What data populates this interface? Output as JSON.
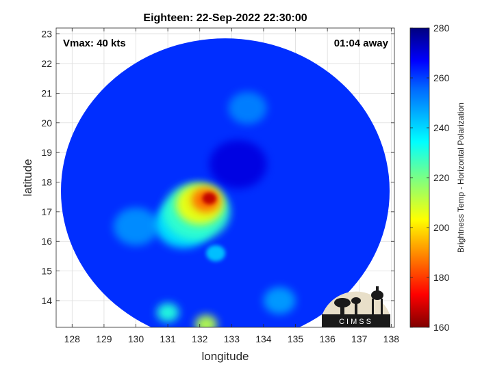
{
  "chart_data": {
    "type": "heatmap",
    "title": "Eighteen: 22-Sep-2022 22:30:00",
    "xlabel": "longitude",
    "ylabel": "latitude",
    "xlim": [
      127.5,
      138.1
    ],
    "ylim": [
      13.1,
      23.2
    ],
    "x_ticks": [
      128,
      129,
      130,
      131,
      132,
      133,
      134,
      135,
      136,
      137,
      138
    ],
    "y_ticks": [
      14,
      15,
      16,
      17,
      18,
      19,
      20,
      21,
      22,
      23
    ],
    "grid": true,
    "annotations": {
      "top_left": "Vmax: 40 kts",
      "top_right": "01:04 away"
    },
    "colorbar": {
      "label": "Brightness Temp - Horizontal Polarization",
      "range": [
        160,
        280
      ],
      "ticks": [
        160,
        180,
        200,
        220,
        240,
        260,
        280
      ],
      "colormap": [
        "#7f0000",
        "#ff0000",
        "#ffff00",
        "#00ffff",
        "#0000ff",
        "#00007f"
      ]
    },
    "swath": {
      "center_lon": 132.8,
      "center_lat": 17.7,
      "radius_lon": 5.15,
      "radius_lat": 5.15
    },
    "background_tb": 262,
    "features": [
      {
        "lon": 132.3,
        "lat": 17.45,
        "tb": 166,
        "size": 0.22
      },
      {
        "lon": 132.2,
        "lat": 17.4,
        "tb": 185,
        "size": 0.45
      },
      {
        "lon": 132.0,
        "lat": 17.25,
        "tb": 205,
        "size": 0.75
      },
      {
        "lon": 131.9,
        "lat": 17.0,
        "tb": 228,
        "size": 1.05
      },
      {
        "lon": 131.5,
        "lat": 16.6,
        "tb": 238,
        "size": 0.9
      },
      {
        "lon": 131.0,
        "lat": 13.6,
        "tb": 230,
        "size": 0.35
      },
      {
        "lon": 132.2,
        "lat": 13.2,
        "tb": 212,
        "size": 0.35
      },
      {
        "lon": 132.5,
        "lat": 15.6,
        "tb": 242,
        "size": 0.3
      },
      {
        "lon": 130.0,
        "lat": 16.5,
        "tb": 250,
        "size": 0.7
      },
      {
        "lon": 133.5,
        "lat": 20.5,
        "tb": 252,
        "size": 0.6
      },
      {
        "lon": 134.5,
        "lat": 14.0,
        "tb": 248,
        "size": 0.5
      },
      {
        "lon": 133.2,
        "lat": 18.6,
        "tb": 270,
        "size": 0.9
      }
    ]
  },
  "logo": {
    "text": "CIMSS"
  }
}
